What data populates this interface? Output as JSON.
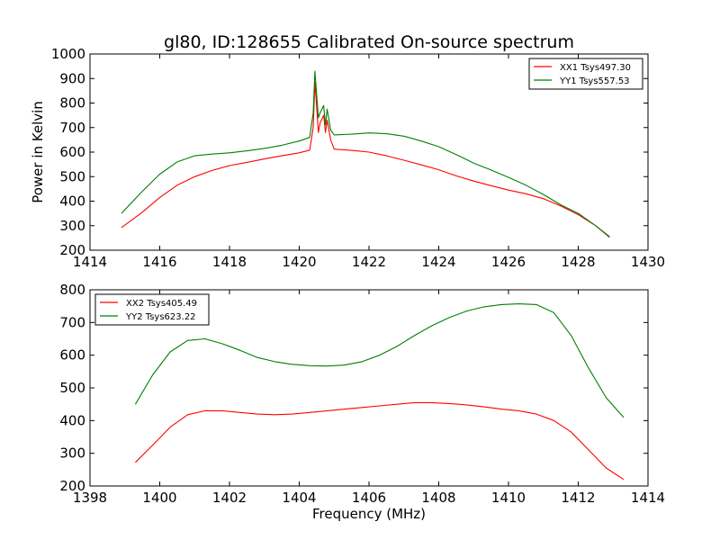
{
  "chart_data": [
    {
      "type": "line",
      "title": "gl80, ID:128655 Calibrated On-source spectrum",
      "xlabel": "",
      "ylabel": "Power in Kelvin",
      "xlim": [
        1414,
        1430
      ],
      "ylim": [
        200,
        1000
      ],
      "xticks": [
        "1414",
        "1416",
        "1418",
        "1420",
        "1422",
        "1424",
        "1426",
        "1428",
        "1430"
      ],
      "yticks": [
        "200",
        "300",
        "400",
        "500",
        "600",
        "700",
        "800",
        "900",
        "1000"
      ],
      "grid": false,
      "legend_position": "top-right",
      "series": [
        {
          "name": "XX1 Tsys497.30",
          "color": "#ff0000",
          "x": [
            1414.9,
            1415.5,
            1416.0,
            1416.5,
            1417.0,
            1417.5,
            1418.0,
            1418.5,
            1419.0,
            1419.5,
            1420.0,
            1420.3,
            1420.4,
            1420.45,
            1420.55,
            1420.6,
            1420.7,
            1420.75,
            1420.8,
            1420.9,
            1421.0,
            1421.5,
            1422.0,
            1422.5,
            1423.0,
            1423.5,
            1424.0,
            1424.5,
            1425.0,
            1425.5,
            1426.0,
            1426.5,
            1427.0,
            1427.5,
            1428.0,
            1428.5,
            1428.9
          ],
          "values": [
            292,
            355,
            415,
            465,
            500,
            525,
            545,
            558,
            572,
            585,
            597,
            608,
            700,
            885,
            680,
            720,
            750,
            680,
            730,
            650,
            612,
            607,
            600,
            585,
            567,
            548,
            528,
            503,
            482,
            463,
            445,
            430,
            410,
            380,
            345,
            300,
            255
          ]
        },
        {
          "name": "YY1 Tsys557.53",
          "color": "#008000",
          "x": [
            1414.9,
            1415.5,
            1416.0,
            1416.5,
            1417.0,
            1417.5,
            1418.0,
            1418.5,
            1419.0,
            1419.5,
            1420.0,
            1420.3,
            1420.4,
            1420.45,
            1420.55,
            1420.6,
            1420.7,
            1420.75,
            1420.8,
            1420.9,
            1421.0,
            1421.5,
            1422.0,
            1422.5,
            1423.0,
            1423.5,
            1424.0,
            1424.5,
            1425.0,
            1425.5,
            1426.0,
            1426.5,
            1427.0,
            1427.5,
            1428.0,
            1428.5,
            1428.9
          ],
          "values": [
            350,
            440,
            510,
            560,
            585,
            592,
            597,
            605,
            615,
            628,
            645,
            660,
            760,
            930,
            740,
            760,
            790,
            710,
            775,
            690,
            670,
            673,
            678,
            675,
            665,
            645,
            622,
            590,
            555,
            527,
            497,
            465,
            427,
            385,
            350,
            300,
            252
          ]
        }
      ]
    },
    {
      "type": "line",
      "title": "",
      "xlabel": "Frequency (MHz)",
      "ylabel": "",
      "xlim": [
        1398,
        1414
      ],
      "ylim": [
        200,
        800
      ],
      "xticks": [
        "1398",
        "1400",
        "1402",
        "1404",
        "1406",
        "1408",
        "1410",
        "1412",
        "1414"
      ],
      "yticks": [
        "200",
        "300",
        "400",
        "500",
        "600",
        "700",
        "800"
      ],
      "grid": false,
      "legend_position": "top-left",
      "series": [
        {
          "name": "XX2 Tsys405.49",
          "color": "#ff0000",
          "x": [
            1399.3,
            1399.8,
            1400.3,
            1400.8,
            1401.3,
            1401.8,
            1402.3,
            1402.8,
            1403.3,
            1403.8,
            1404.3,
            1404.8,
            1405.3,
            1405.8,
            1406.3,
            1406.8,
            1407.3,
            1407.8,
            1408.3,
            1408.8,
            1409.3,
            1409.8,
            1410.3,
            1410.8,
            1411.3,
            1411.8,
            1412.3,
            1412.8,
            1413.3
          ],
          "values": [
            272,
            325,
            380,
            418,
            430,
            430,
            425,
            420,
            418,
            420,
            425,
            430,
            435,
            440,
            445,
            450,
            455,
            455,
            452,
            448,
            442,
            435,
            430,
            420,
            400,
            365,
            310,
            255,
            220
          ]
        },
        {
          "name": "YY2 Tsys623.22",
          "color": "#008000",
          "x": [
            1399.3,
            1399.8,
            1400.3,
            1400.8,
            1401.3,
            1401.8,
            1402.3,
            1402.8,
            1403.3,
            1403.8,
            1404.3,
            1404.8,
            1405.3,
            1405.8,
            1406.3,
            1406.8,
            1407.3,
            1407.8,
            1408.3,
            1408.8,
            1409.3,
            1409.8,
            1410.3,
            1410.8,
            1411.3,
            1411.8,
            1412.3,
            1412.8,
            1413.3
          ],
          "values": [
            450,
            540,
            610,
            645,
            650,
            635,
            615,
            593,
            580,
            572,
            568,
            567,
            570,
            580,
            600,
            627,
            660,
            690,
            715,
            735,
            748,
            755,
            757,
            755,
            730,
            660,
            560,
            470,
            410
          ]
        }
      ]
    }
  ]
}
